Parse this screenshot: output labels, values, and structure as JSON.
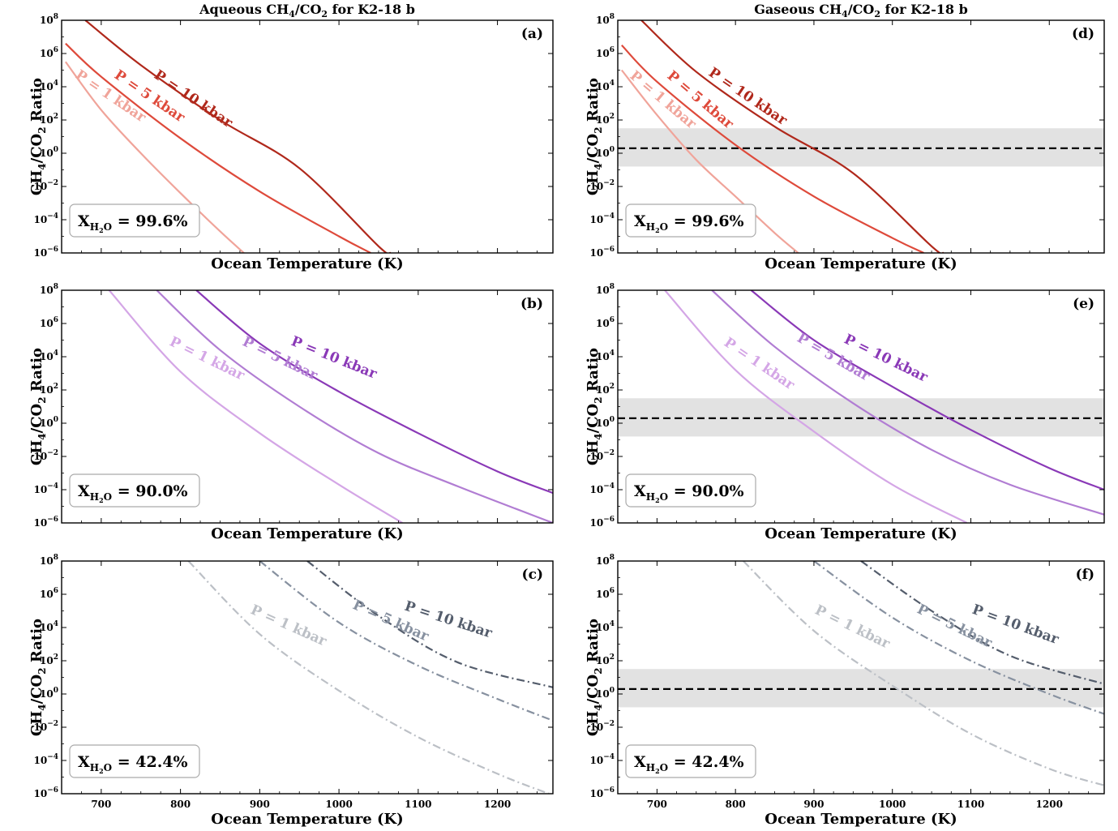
{
  "figure": {
    "panels": [
      {
        "id": "a",
        "letter": "(a)",
        "title": "Aqueous CH4/CO2 for K2-18 b",
        "xlabel": "Ocean Temperature (K)",
        "ylabel": "CH4/CO2 Ratio",
        "xh2o": "99.6%",
        "observed_band": null
      },
      {
        "id": "b",
        "letter": "(b)",
        "title": "",
        "xlabel": "Ocean Temperature (K)",
        "ylabel": "CH4/CO2 Ratio",
        "xh2o": "90.0%",
        "observed_band": null
      },
      {
        "id": "c",
        "letter": "(c)",
        "title": "",
        "xlabel": "Ocean Temperature (K)",
        "ylabel": "CH4/CO2 Ratio",
        "xh2o": "42.4%",
        "observed_band": null
      },
      {
        "id": "d",
        "letter": "(d)",
        "title": "Gaseous CH4/CO2 for K2-18 b",
        "xlabel": "Ocean Temperature (K)",
        "ylabel": "CH4/CO2 Ratio",
        "xh2o": "99.6%",
        "observed_band": {
          "center_log": 0.3,
          "low_log": -0.8,
          "high_log": 1.5
        }
      },
      {
        "id": "e",
        "letter": "(e)",
        "title": "",
        "xlabel": "Ocean Temperature (K)",
        "ylabel": "CH4/CO2 Ratio",
        "xh2o": "90.0%",
        "observed_band": {
          "center_log": 0.3,
          "low_log": -0.8,
          "high_log": 1.5
        }
      },
      {
        "id": "f",
        "letter": "(f)",
        "title": "",
        "xlabel": "Ocean Temperature (K)",
        "ylabel": "CH4/CO2 Ratio",
        "xh2o": "42.4%",
        "observed_band": {
          "center_log": 0.3,
          "low_log": -0.8,
          "high_log": 1.5
        }
      }
    ],
    "x_ticks": [
      "700",
      "800",
      "900",
      "1000",
      "1100",
      "1200"
    ],
    "y_ticks": [
      "10−6",
      "10−4",
      "10−2",
      "100",
      "102",
      "104",
      "106",
      "108"
    ],
    "y_tick_exponents": [
      "−6",
      "−4",
      "−2",
      "0",
      "2",
      "4",
      "6",
      "8"
    ]
  },
  "chart_data": [
    {
      "type": "line",
      "panel": "a",
      "title": "Aqueous CH4/CO2 for K2-18 b",
      "xlabel": "Ocean Temperature (K)",
      "ylabel": "CH4/CO2 Ratio",
      "xlim": [
        650,
        1270
      ],
      "ylim": [
        1e-06,
        100000000.0
      ],
      "yscale": "log",
      "annotation": "X_H2O = 99.6%",
      "series": [
        {
          "name": "P = 1 kbar",
          "color": "#f0a49a",
          "style": "solid",
          "x": [
            655,
            700,
            750,
            800,
            850,
            880
          ],
          "y_log10": [
            5.5,
            2.6,
            0.0,
            -2.4,
            -4.7,
            -6.0
          ]
        },
        {
          "name": "P = 5 kbar",
          "color": "#de4a3b",
          "style": "solid",
          "x": [
            655,
            700,
            800,
            900,
            1000,
            1040
          ],
          "y_log10": [
            6.6,
            4.6,
            0.9,
            -2.3,
            -5.0,
            -6.0
          ]
        },
        {
          "name": "P = 10 kbar",
          "color": "#b0281b",
          "style": "solid",
          "x": [
            680,
            750,
            850,
            950,
            1050,
            1065
          ],
          "y_log10": [
            8.0,
            5.3,
            2.0,
            -0.9,
            -5.6,
            -6.0
          ]
        }
      ]
    },
    {
      "type": "line",
      "panel": "b",
      "xlabel": "Ocean Temperature (K)",
      "ylabel": "CH4/CO2 Ratio",
      "xlim": [
        650,
        1270
      ],
      "ylim": [
        1e-06,
        100000000.0
      ],
      "yscale": "log",
      "annotation": "X_H2O = 90.0%",
      "series": [
        {
          "name": "P = 1 kbar",
          "color": "#d4a6e6",
          "style": "solid",
          "x": [
            710,
            800,
            900,
            1000,
            1080
          ],
          "y_log10": [
            8.0,
            3.1,
            -0.6,
            -3.7,
            -6.0
          ]
        },
        {
          "name": "P = 5 kbar",
          "color": "#b17dd3",
          "style": "solid",
          "x": [
            770,
            850,
            950,
            1050,
            1150,
            1270
          ],
          "y_log10": [
            8.0,
            4.4,
            1.0,
            -1.8,
            -3.8,
            -6.0
          ]
        },
        {
          "name": "P = 10 kbar",
          "color": "#8a39b7",
          "style": "solid",
          "x": [
            820,
            900,
            1000,
            1100,
            1200,
            1270
          ],
          "y_log10": [
            8.0,
            4.8,
            1.9,
            -0.6,
            -2.9,
            -4.2
          ]
        }
      ]
    },
    {
      "type": "line",
      "panel": "c",
      "xlabel": "Ocean Temperature (K)",
      "ylabel": "CH4/CO2 Ratio",
      "xlim": [
        650,
        1270
      ],
      "ylim": [
        1e-06,
        100000000.0
      ],
      "yscale": "log",
      "annotation": "X_H2O = 42.4%",
      "series": [
        {
          "name": "P = 1 kbar",
          "color": "#bcc0c6",
          "style": "dashdot",
          "x": [
            810,
            900,
            1000,
            1100,
            1200,
            1265
          ],
          "y_log10": [
            8.0,
            3.6,
            0.2,
            -2.6,
            -4.8,
            -6.0
          ]
        },
        {
          "name": "P = 5 kbar",
          "color": "#8791a0",
          "style": "dashdot",
          "x": [
            900,
            1000,
            1100,
            1200,
            1270
          ],
          "y_log10": [
            8.0,
            4.3,
            1.7,
            -0.3,
            -1.6
          ]
        },
        {
          "name": "P = 10 kbar",
          "color": "#545d6c",
          "style": "dashdot",
          "x": [
            960,
            1050,
            1150,
            1270
          ],
          "y_log10": [
            8.0,
            4.7,
            1.9,
            0.4
          ]
        }
      ]
    },
    {
      "type": "line",
      "panel": "d",
      "title": "Gaseous CH4/CO2 for K2-18 b",
      "xlabel": "Ocean Temperature (K)",
      "ylabel": "CH4/CO2 Ratio",
      "xlim": [
        650,
        1270
      ],
      "ylim": [
        1e-06,
        100000000.0
      ],
      "yscale": "log",
      "annotation": "X_H2O = 99.6%",
      "series": [
        {
          "name": "P = 1 kbar",
          "color": "#f0a49a",
          "style": "solid",
          "x": [
            655,
            700,
            750,
            800,
            850,
            880
          ],
          "y_log10": [
            5.0,
            2.3,
            -0.4,
            -2.6,
            -4.8,
            -6.0
          ]
        },
        {
          "name": "P = 5 kbar",
          "color": "#de4a3b",
          "style": "solid",
          "x": [
            655,
            700,
            800,
            900,
            1000,
            1040
          ],
          "y_log10": [
            6.5,
            4.3,
            0.5,
            -2.6,
            -5.1,
            -6.0
          ]
        },
        {
          "name": "P = 10 kbar",
          "color": "#b0281b",
          "style": "solid",
          "x": [
            680,
            750,
            850,
            950,
            1050,
            1065
          ],
          "y_log10": [
            8.0,
            4.9,
            1.6,
            -1.2,
            -5.6,
            -6.0
          ]
        }
      ]
    },
    {
      "type": "line",
      "panel": "e",
      "xlabel": "Ocean Temperature (K)",
      "ylabel": "CH4/CO2 Ratio",
      "xlim": [
        650,
        1270
      ],
      "ylim": [
        1e-06,
        100000000.0
      ],
      "yscale": "log",
      "annotation": "X_H2O = 90.0%",
      "series": [
        {
          "name": "P = 1 kbar",
          "color": "#d4a6e6",
          "style": "solid",
          "x": [
            710,
            800,
            900,
            1000,
            1095
          ],
          "y_log10": [
            8.0,
            3.2,
            -0.5,
            -3.7,
            -6.0
          ]
        },
        {
          "name": "P = 5 kbar",
          "color": "#b17dd3",
          "style": "solid",
          "x": [
            770,
            850,
            950,
            1050,
            1150,
            1270
          ],
          "y_log10": [
            8.0,
            4.6,
            1.2,
            -1.6,
            -3.7,
            -5.5
          ]
        },
        {
          "name": "P = 10 kbar",
          "color": "#8a39b7",
          "style": "solid",
          "x": [
            820,
            900,
            1000,
            1100,
            1200,
            1270
          ],
          "y_log10": [
            8.0,
            5.0,
            2.2,
            -0.4,
            -2.7,
            -4.0
          ]
        }
      ]
    },
    {
      "type": "line",
      "panel": "f",
      "xlabel": "Ocean Temperature (K)",
      "ylabel": "CH4/CO2 Ratio",
      "xlim": [
        650,
        1270
      ],
      "ylim": [
        1e-06,
        100000000.0
      ],
      "yscale": "log",
      "annotation": "X_H2O = 42.4%",
      "series": [
        {
          "name": "P = 1 kbar",
          "color": "#bcc0c6",
          "style": "dashdot",
          "x": [
            810,
            900,
            1000,
            1100,
            1200,
            1270
          ],
          "y_log10": [
            8.0,
            3.8,
            0.5,
            -2.4,
            -4.5,
            -5.5
          ]
        },
        {
          "name": "P = 5 kbar",
          "color": "#8791a0",
          "style": "dashdot",
          "x": [
            900,
            1000,
            1100,
            1200,
            1270
          ],
          "y_log10": [
            8.0,
            4.6,
            2.0,
            0.0,
            -1.2
          ]
        },
        {
          "name": "P = 10 kbar",
          "color": "#545d6c",
          "style": "dashdot",
          "x": [
            960,
            1050,
            1150,
            1270
          ],
          "y_log10": [
            8.0,
            5.0,
            2.3,
            0.6
          ]
        }
      ],
      "observed_band": {
        "center_log10": 0.3,
        "low_log10": -0.8,
        "high_log10": 1.5
      }
    }
  ]
}
